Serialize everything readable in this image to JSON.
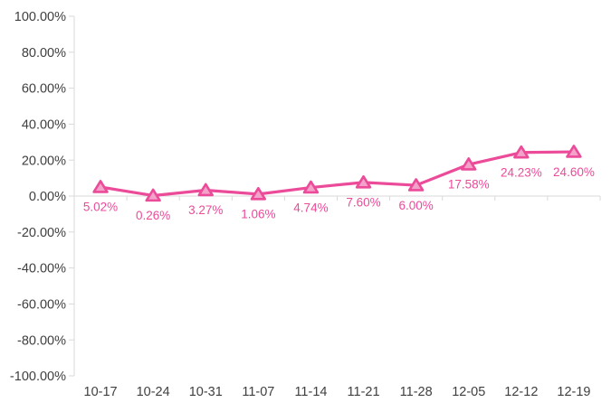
{
  "chart_data": {
    "type": "line",
    "title": "",
    "xlabel": "",
    "ylabel": "",
    "categories": [
      "10-17",
      "10-24",
      "10-31",
      "11-07",
      "11-14",
      "11-21",
      "11-28",
      "12-05",
      "12-12",
      "12-19"
    ],
    "series": [
      {
        "name": "percent-change",
        "values": [
          5.02,
          0.26,
          3.27,
          1.06,
          4.74,
          7.6,
          6.0,
          17.58,
          24.23,
          24.6
        ],
        "data_labels": [
          "5.02%",
          "0.26%",
          "3.27%",
          "1.06%",
          "4.74%",
          "7.60%",
          "6.00%",
          "17.58%",
          "24.23%",
          "24.60%"
        ]
      }
    ],
    "ylim": [
      -100,
      100
    ],
    "ytick_step": 20,
    "ytick_labels": [
      "100.00%",
      "80.00%",
      "60.00%",
      "40.00%",
      "20.00%",
      "0.00%",
      "-20.00%",
      "-40.00%",
      "-60.00%",
      "-80.00%",
      "-100.00%"
    ],
    "grid": false,
    "legend_position": "none",
    "marker_shape": "triangle-up",
    "data_label_position": "below",
    "colors": {
      "line": "#EB4B99",
      "marker_fill": "#F3A3C9",
      "marker_stroke": "#EB4B99",
      "data_label_text": "#EB4B99",
      "axis_line": "#D9D9D9",
      "axis_text": "#404040",
      "background": "#FFFFFF"
    }
  }
}
